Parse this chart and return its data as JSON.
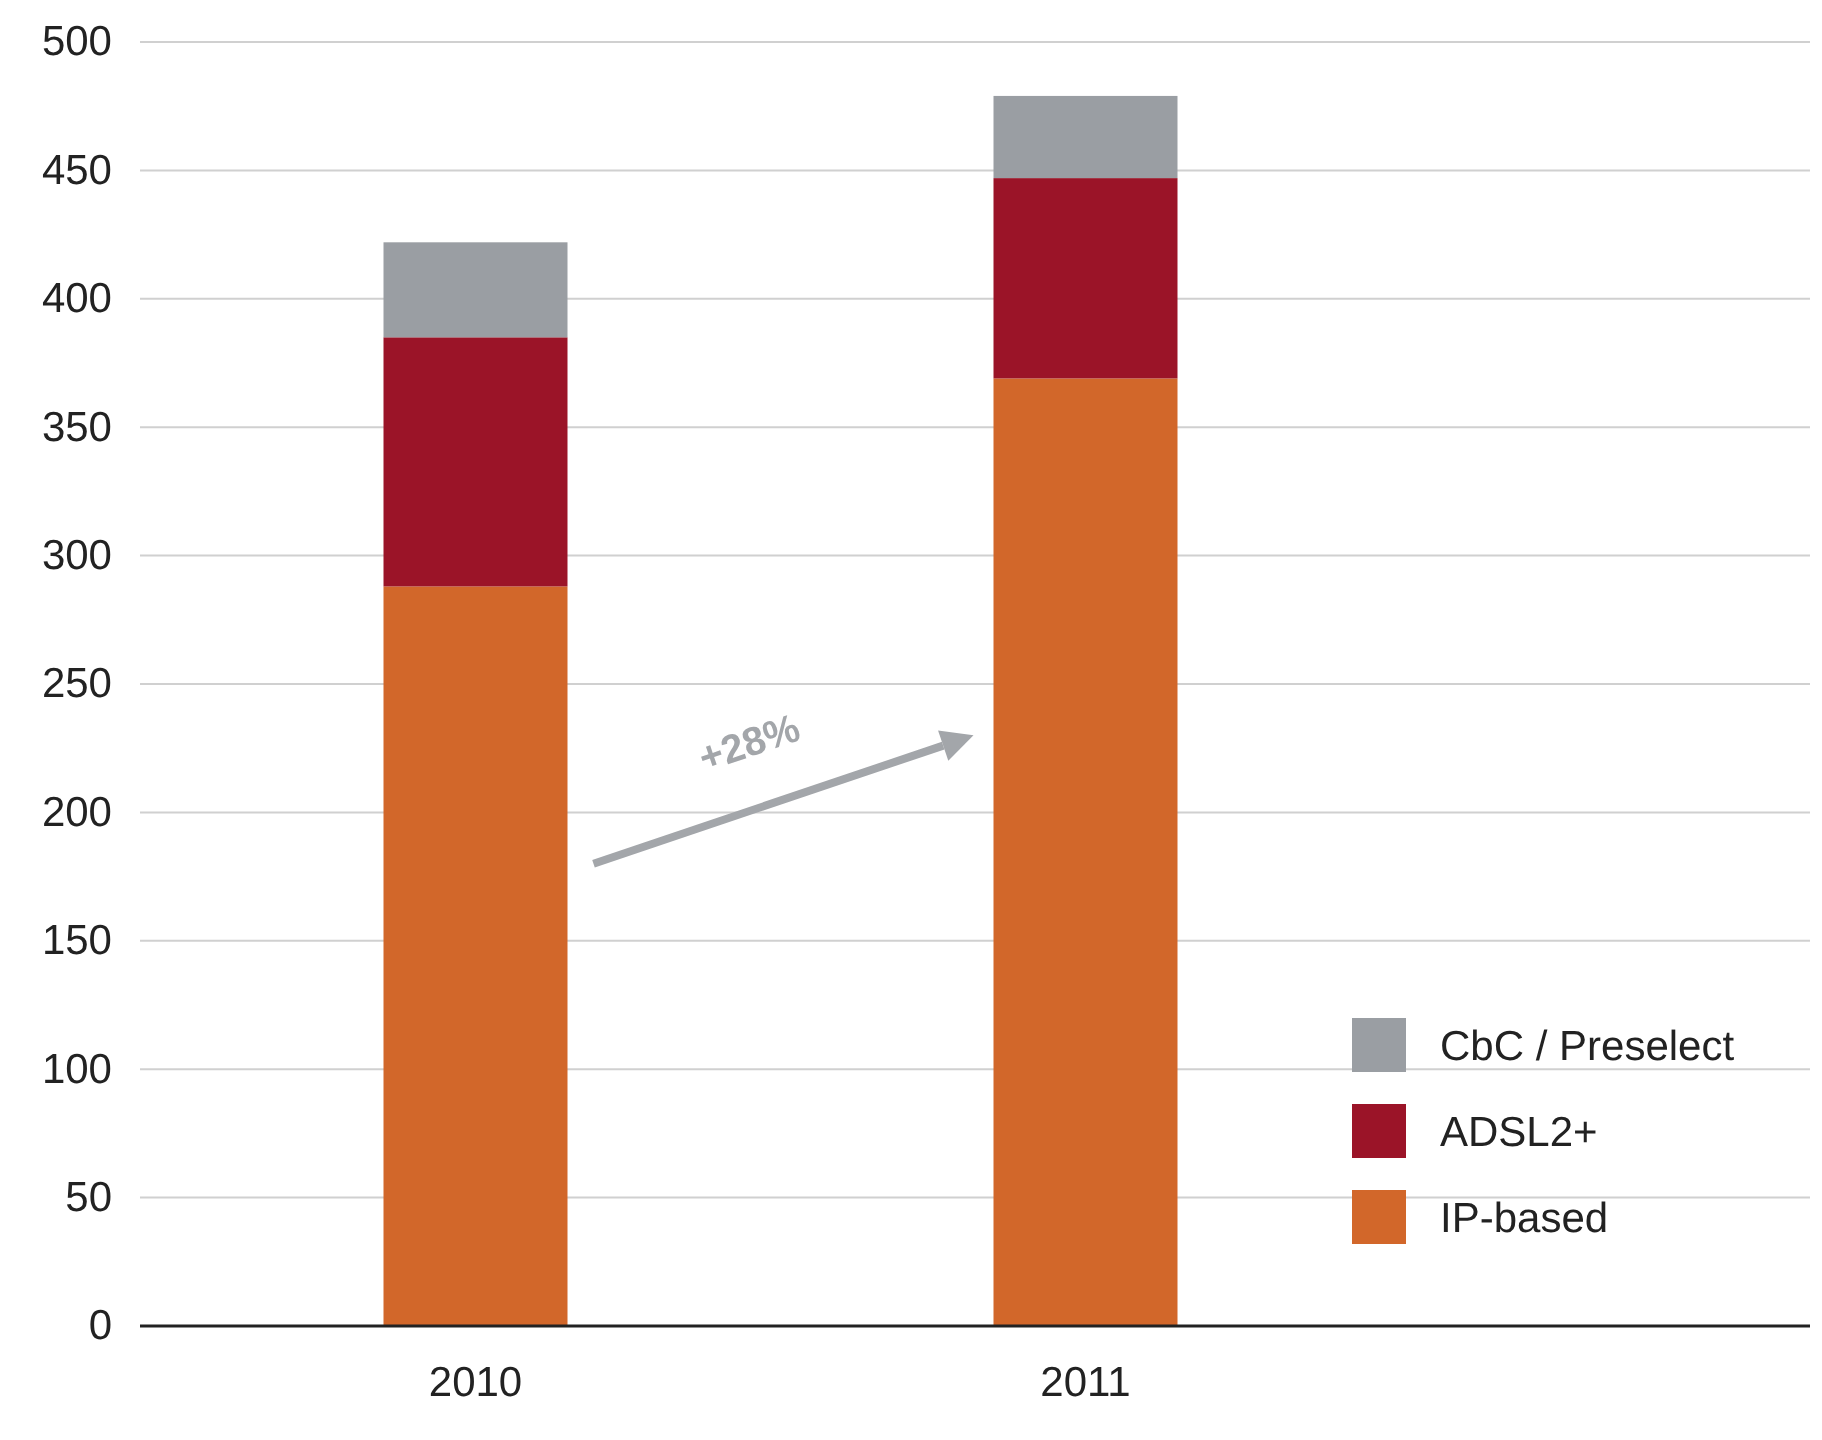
{
  "chart_data": {
    "type": "bar",
    "stacked": true,
    "categories": [
      "2010",
      "2011"
    ],
    "series": [
      {
        "name": "IP-based",
        "color": "#d2672a",
        "values": [
          288,
          369
        ]
      },
      {
        "name": "ADSL2+",
        "color": "#9b1428",
        "values": [
          97,
          78
        ]
      },
      {
        "name": "CbC / Preselect",
        "color": "#9a9ea3",
        "values": [
          37,
          32
        ]
      }
    ],
    "ylim": [
      0,
      500
    ],
    "yticks": [
      0,
      50,
      100,
      150,
      200,
      250,
      300,
      350,
      400,
      450,
      500
    ],
    "grid": "y",
    "legend": "bottom right",
    "annotations": [
      "+28%"
    ]
  }
}
